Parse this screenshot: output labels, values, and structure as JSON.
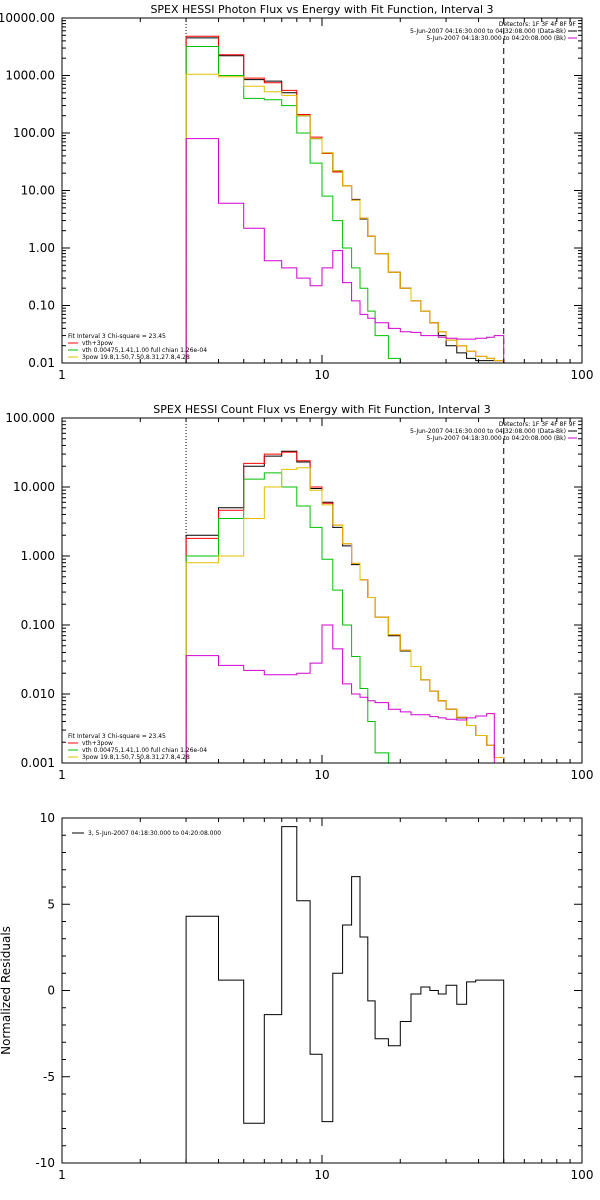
{
  "chart_data": [
    {
      "type": "line",
      "title": "SPEX HESSI Photon Flux vs Energy with Fit Function, Interval 3",
      "xscale": "log",
      "yscale": "log",
      "xlim": [
        1,
        100
      ],
      "ylim": [
        0.01,
        10000
      ],
      "xtick_labels": [
        "1",
        "10",
        "100"
      ],
      "xtick_values": [
        1,
        10,
        100
      ],
      "ytick_labels": [
        "0.01",
        "0.10",
        "1.00",
        "10.00",
        "100.00",
        "1000.00",
        "10000.00"
      ],
      "ytick_values": [
        0.01,
        0.1,
        1,
        10,
        100,
        1000,
        10000
      ],
      "vlines": [
        {
          "x": 3,
          "style": "dotted"
        },
        {
          "x": 50,
          "style": "dashed"
        }
      ],
      "header_legend": [
        {
          "text": "Detectors: 1F 3F 4F 8F 9F",
          "color": ""
        },
        {
          "text": "5-Jun-2007 04:16:30.000 to 04:32:08.000 (Data-Bk)",
          "color": "#000000"
        },
        {
          "text": "5-Jun-2007 04:18:30.000 to 04:20:08.000 (Bk)",
          "color": "#d000d0"
        }
      ],
      "fit_legend": [
        {
          "text": "Fit Interval 3   Chi-square = 23.45",
          "color": ""
        },
        {
          "text": "vth+3pow",
          "color": "#ff0000"
        },
        {
          "text": "vth 0.00475,1.41,1.00  full chian 1.26e-04",
          "color": "#00c000"
        },
        {
          "text": "3pow 19.8,1.50,7.50,8.31,27.8,4.28",
          "color": "#e0c000"
        }
      ],
      "bin_edges": [
        3,
        4,
        5,
        6,
        7,
        8,
        9,
        10,
        11,
        12,
        13,
        14,
        15,
        16,
        18,
        20,
        22,
        24,
        26,
        28,
        30,
        33,
        36,
        39,
        43,
        46,
        50
      ],
      "series": [
        {
          "name": "Data-Bk",
          "color": "#000000",
          "values": [
            4500,
            2200,
            850,
            800,
            500,
            200,
            80,
            45,
            22,
            12,
            7,
            3.2,
            1.6,
            0.8,
            0.38,
            0.2,
            0.12,
            0.08,
            0.05,
            0.03,
            0.02,
            0.015,
            0.012,
            0.011,
            0.011,
            0.011
          ]
        },
        {
          "name": "vth+3pow",
          "color": "#ff0000",
          "values": [
            4800,
            2300,
            900,
            750,
            550,
            210,
            85,
            44,
            21,
            12,
            6.8,
            3.3,
            1.6,
            0.8,
            0.38,
            0.2,
            0.12,
            0.08,
            0.05,
            0.035,
            0.025,
            0.02,
            0.016,
            0.013,
            0.012,
            0.011
          ]
        },
        {
          "name": "vth",
          "color": "#00c000",
          "values": [
            3200,
            1000,
            400,
            380,
            300,
            100,
            30,
            8,
            3,
            1,
            0.45,
            0.2,
            0.08,
            0.03,
            0.012
          ]
        },
        {
          "name": "3pow",
          "color": "#e0c000",
          "values": [
            1050,
            950,
            650,
            520,
            450,
            200,
            80,
            45,
            22,
            12,
            6.8,
            3.3,
            1.6,
            0.8,
            0.38,
            0.2,
            0.12,
            0.08,
            0.05,
            0.035,
            0.025,
            0.02,
            0.016,
            0.013,
            0.012,
            0.011
          ]
        },
        {
          "name": "Bk",
          "color": "#d000d0",
          "values": [
            80,
            6,
            2.2,
            0.6,
            0.45,
            0.3,
            0.22,
            0.45,
            0.9,
            0.25,
            0.12,
            0.07,
            0.06,
            0.05,
            0.04,
            0.035,
            0.034,
            0.03,
            0.03,
            0.028,
            0.027,
            0.026,
            0.026,
            0.027,
            0.028,
            0.03
          ]
        }
      ]
    },
    {
      "type": "line",
      "title": "SPEX HESSI Count Flux vs Energy with Fit Function, Interval 3",
      "xscale": "log",
      "yscale": "log",
      "xlim": [
        1,
        100
      ],
      "ylim": [
        0.001,
        100
      ],
      "xtick_labels": [
        "1",
        "10",
        "100"
      ],
      "xtick_values": [
        1,
        10,
        100
      ],
      "ytick_labels": [
        "0.001",
        "0.010",
        "0.100",
        "1.000",
        "10.000",
        "100.000"
      ],
      "ytick_values": [
        0.001,
        0.01,
        0.1,
        1,
        10,
        100
      ],
      "vlines": [
        {
          "x": 3,
          "style": "dotted"
        },
        {
          "x": 50,
          "style": "dashed"
        }
      ],
      "header_legend": [
        {
          "text": "Detectors: 1F 3F 4F 8F 9F",
          "color": ""
        },
        {
          "text": "5-Jun-2007 04:16:30.000 to 04:32:08.000 (Data-Bk)",
          "color": "#000000"
        },
        {
          "text": "5-Jun-2007 04:18:30.000 to 04:20:08.000 (Bk)",
          "color": "#d000d0"
        }
      ],
      "fit_legend": [
        {
          "text": "Fit Interval 3   Chi-square = 23.45",
          "color": ""
        },
        {
          "text": "vth+3pow",
          "color": "#ff0000"
        },
        {
          "text": "vth 0.00475,1.41,1.00  full chian 1.26e-04",
          "color": "#00c000"
        },
        {
          "text": "3pow 19.8,1.50,7.50,8.31,27.8,4.28",
          "color": "#e0c000"
        }
      ],
      "bin_edges": [
        3,
        4,
        5,
        6,
        7,
        8,
        9,
        10,
        11,
        12,
        13,
        14,
        15,
        16,
        18,
        20,
        22,
        24,
        26,
        28,
        30,
        33,
        36,
        39,
        43,
        46,
        50,
        53
      ],
      "series": [
        {
          "name": "Data-Bk",
          "color": "#000000",
          "values": [
            2.0,
            5.0,
            20,
            28,
            33,
            23,
            9.5,
            6.0,
            2.6,
            1.4,
            0.75,
            0.45,
            0.25,
            0.13,
            0.07,
            0.042,
            0.025,
            0.016,
            0.011,
            0.008,
            0.006,
            0.0045,
            0.0035,
            0.0025,
            0.0018,
            0.0012
          ]
        },
        {
          "name": "vth+3pow",
          "color": "#ff0000",
          "values": [
            1.8,
            4.6,
            22,
            30,
            32,
            24,
            10,
            5.8,
            2.8,
            1.5,
            0.78,
            0.45,
            0.25,
            0.13,
            0.072,
            0.043,
            0.025,
            0.016,
            0.011,
            0.008,
            0.006,
            0.0046,
            0.0035,
            0.0025,
            0.0018,
            0.0012,
            0.001
          ]
        },
        {
          "name": "vth",
          "color": "#00c000",
          "values": [
            1.0,
            3.5,
            13,
            16,
            10,
            5.3,
            2.6,
            0.9,
            0.32,
            0.1,
            0.035,
            0.012,
            0.004,
            0.0014
          ]
        },
        {
          "name": "3pow",
          "color": "#e0c000",
          "values": [
            0.8,
            1.0,
            3.5,
            10,
            18,
            19,
            9.0,
            5.5,
            2.8,
            1.5,
            0.78,
            0.45,
            0.25,
            0.13,
            0.072,
            0.043,
            0.025,
            0.016,
            0.011,
            0.008,
            0.006,
            0.0046,
            0.0035,
            0.0025,
            0.0018,
            0.0012,
            0.001
          ]
        },
        {
          "name": "Bk",
          "color": "#d000d0",
          "values": [
            0.036,
            0.026,
            0.022,
            0.019,
            0.019,
            0.02,
            0.028,
            0.1,
            0.045,
            0.014,
            0.01,
            0.009,
            0.008,
            0.0075,
            0.006,
            0.0055,
            0.005,
            0.005,
            0.0047,
            0.0045,
            0.0043,
            0.0042,
            0.0045,
            0.0048,
            0.0052
          ]
        }
      ]
    },
    {
      "type": "line",
      "title": "",
      "xscale": "log",
      "yscale": "linear",
      "xlim": [
        1,
        100
      ],
      "ylim": [
        -10,
        10
      ],
      "ylabel": "Normalized Residuals",
      "xtick_labels": [
        "1",
        "10",
        "100"
      ],
      "xtick_values": [
        1,
        10,
        100
      ],
      "ytick_labels": [
        "-10",
        "-5",
        "0",
        "5",
        "10"
      ],
      "ytick_values": [
        -10,
        -5,
        0,
        5,
        10
      ],
      "legend": [
        {
          "text": "3,  5-Jun-2007 04:18:30.000 to 04:20:08.000",
          "color": "#000000"
        }
      ],
      "bin_edges": [
        3,
        4,
        5,
        6,
        7,
        7.5,
        8,
        8.5,
        9,
        10,
        11,
        12,
        13,
        14,
        15,
        16,
        18,
        20,
        22,
        24,
        26,
        28,
        30,
        33,
        36,
        39,
        43,
        46,
        50
      ],
      "series": [
        {
          "name": "",
          "color": "#000000",
          "values": [
            4.3,
            0.6,
            -7.7,
            -1.4,
            9.5,
            9.5,
            5.2,
            5.2,
            -3.7,
            -7.6,
            1.0,
            3.8,
            6.6,
            3.1,
            -0.6,
            -2.8,
            -3.2,
            -1.8,
            -0.2,
            0.2,
            0.0,
            -0.2,
            0.3,
            -0.8,
            0.5,
            0.6,
            0.6,
            0.6
          ]
        }
      ]
    }
  ]
}
